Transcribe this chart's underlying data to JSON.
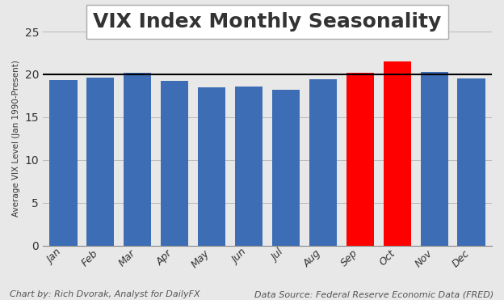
{
  "title": "VIX Index Monthly Seasonality",
  "ylabel": "Average VIX Level (Jan 1990-Present)",
  "categories": [
    "Jan",
    "Feb",
    "Mar",
    "Apr",
    "May",
    "Jun",
    "Jul",
    "Aug",
    "Sep",
    "Oct",
    "Nov",
    "Dec"
  ],
  "values": [
    19.3,
    19.65,
    20.2,
    19.2,
    18.45,
    18.6,
    18.15,
    19.4,
    20.15,
    21.5,
    20.3,
    19.5
  ],
  "bar_colors": [
    "#3d6db5",
    "#3d6db5",
    "#3d6db5",
    "#3d6db5",
    "#3d6db5",
    "#3d6db5",
    "#3d6db5",
    "#3d6db5",
    "#ff0000",
    "#ff0000",
    "#3d6db5",
    "#3d6db5"
  ],
  "hline_y": 20.0,
  "hline_color": "#000000",
  "ylim": [
    0,
    25
  ],
  "yticks": [
    0,
    5,
    10,
    15,
    20,
    25
  ],
  "background_color": "#e8e8e8",
  "title_fontsize": 18,
  "footer_left": "Chart by: Rich Dvorak, Analyst for DailyFX",
  "footer_right": "Data Source: Federal Reserve Economic Data (FRED)",
  "footer_fontsize": 8,
  "footer_color": "#555555"
}
